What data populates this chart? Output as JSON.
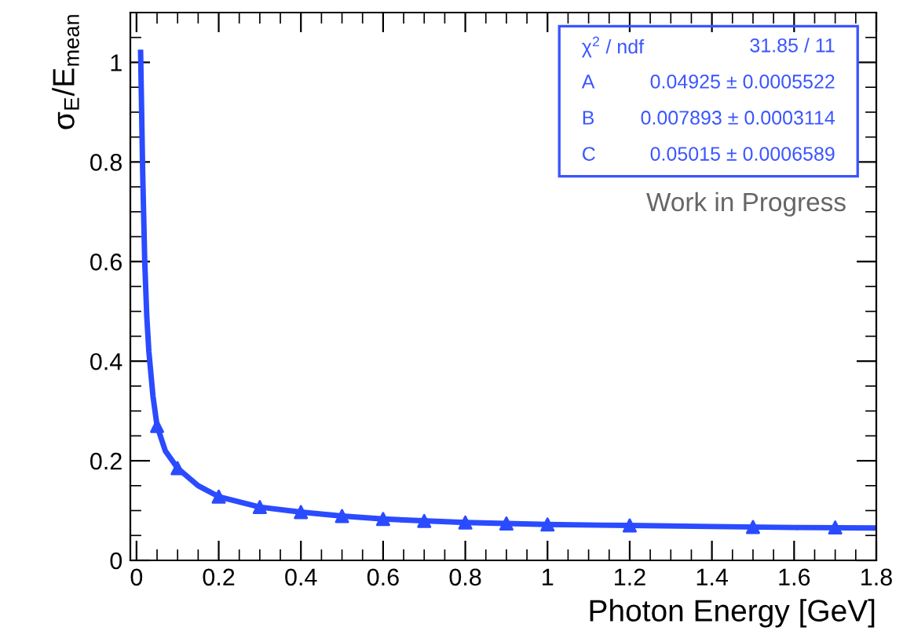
{
  "chart_data": {
    "type": "line",
    "xlabel": "Photon Energy [GeV]",
    "ylabel": "σ$_{E}$/E$_{mean}$",
    "xlim": [
      -0.015,
      1.8
    ],
    "ylim": [
      0,
      1.1
    ],
    "xticks": [
      0,
      0.2,
      0.4,
      0.6,
      0.8,
      1,
      1.2,
      1.4,
      1.6,
      1.8
    ],
    "yticks": [
      0,
      0.2,
      0.4,
      0.6,
      0.8,
      1
    ],
    "grid": false,
    "legend": false,
    "series": [
      {
        "color": "#2a4bff",
        "marker": "none",
        "x": [
          0.01,
          0.015,
          0.02,
          0.025,
          0.03,
          0.04,
          0.05,
          0.07,
          0.1,
          0.15,
          0.2,
          0.3,
          0.4,
          0.5,
          0.6,
          0.8,
          1.0,
          1.2,
          1.4,
          1.6,
          1.8
        ],
        "values": [
          1.02,
          0.78,
          0.6,
          0.49,
          0.42,
          0.33,
          0.27,
          0.22,
          0.185,
          0.15,
          0.128,
          0.107,
          0.097,
          0.089,
          0.083,
          0.076,
          0.072,
          0.07,
          0.068,
          0.066,
          0.065
        ]
      },
      {
        "type": "scatter",
        "color": "#2a4bff",
        "marker": "triangle",
        "x": [
          0.05,
          0.1,
          0.2,
          0.3,
          0.4,
          0.5,
          0.6,
          0.7,
          0.8,
          0.9,
          1.0,
          1.2,
          1.5,
          1.7
        ],
        "values": [
          0.27,
          0.185,
          0.128,
          0.107,
          0.097,
          0.089,
          0.083,
          0.079,
          0.076,
          0.074,
          0.072,
          0.07,
          0.067,
          0.066
        ]
      }
    ],
    "annotations": [
      "χ$^{2}$ / ndf",
      "31.85 / 11",
      "A",
      "0.04925 ± 0.0005522",
      "B",
      "0.007893 ± 0.0003114",
      "C",
      "0.05015 ± 0.0006589",
      "Work in Progress"
    ]
  }
}
